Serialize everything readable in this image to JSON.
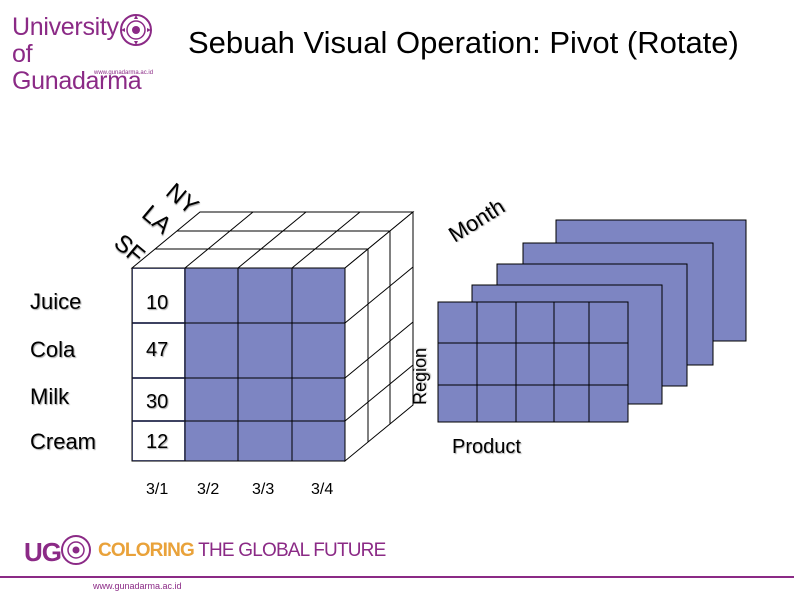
{
  "header": {
    "logo_line1": "University",
    "logo_line2": "of Gunadarma",
    "logo_url": "www.gunadarma.ac.id",
    "title": "Sebuah Visual Operation:  Pivot (Rotate)"
  },
  "cube": {
    "cities": [
      "NY",
      "LA",
      "SF"
    ],
    "products": [
      "Juice",
      "Cola",
      "Milk",
      "Cream"
    ],
    "values": [
      "10",
      "47",
      "30",
      "12"
    ],
    "dates": [
      "3/1",
      "3/2",
      "3/3",
      "3/4"
    ],
    "region_label": "Region",
    "month_label": "Month",
    "product_label": "Product"
  },
  "footer": {
    "ug": "UG",
    "tag_coloring": "COLORING",
    "tag_rest": " THE GLOBAL FUTURE",
    "url": "www.gunadarma.ac.id"
  },
  "colors": {
    "accent": "#8b2a86",
    "cube_fill": "#7d85c2",
    "line": "#000000"
  }
}
